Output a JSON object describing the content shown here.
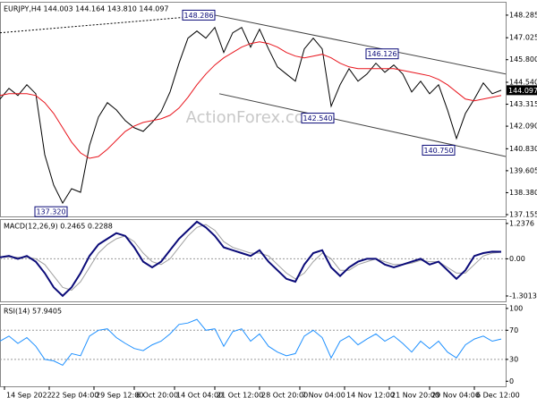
{
  "chart_data": [
    {
      "type": "line",
      "title": "EURJPY,H4 144.003 144.164 143.810 144.097",
      "watermark": "ActionForex.com",
      "last_price": 144.097,
      "xlim": [
        0,
        113
      ],
      "ylim": [
        137.055,
        149.03
      ],
      "yticks": [
        148.285,
        147.025,
        {
          "value": 145.8,
          "label": "145.800"
        },
        {
          "value": 144.54,
          "label": "144.540"
        },
        143.315,
        {
          "value": 142.09,
          "label": "142.090"
        },
        {
          "value": 140.83,
          "label": "140.830"
        },
        139.605,
        {
          "value": 138.38,
          "label": "138.380"
        },
        137.155
      ],
      "x": [
        0,
        2,
        4,
        6,
        8,
        10,
        12,
        14,
        16,
        18,
        20,
        22,
        24,
        26,
        28,
        30,
        32,
        34,
        36,
        38,
        40,
        42,
        44,
        46,
        48,
        50,
        52,
        54,
        56,
        58,
        60,
        62,
        64,
        66,
        68,
        70,
        72,
        74,
        76,
        78,
        80,
        82,
        84,
        86,
        88,
        90,
        92,
        94,
        96,
        98,
        100,
        102,
        104,
        106,
        108,
        110,
        112
      ],
      "series": [
        {
          "color": "#000000",
          "values": [
            143.6,
            144.2,
            143.8,
            144.4,
            143.9,
            140.5,
            138.8,
            137.8,
            138.6,
            138.4,
            141.0,
            142.6,
            143.4,
            143.0,
            142.4,
            142.0,
            141.8,
            142.3,
            142.9,
            144.0,
            145.6,
            147.0,
            147.4,
            147.0,
            147.6,
            146.2,
            147.3,
            147.6,
            146.5,
            147.5,
            146.4,
            145.4,
            145.0,
            144.6,
            146.4,
            147.0,
            146.4,
            143.2,
            144.4,
            145.3,
            144.6,
            145.0,
            145.6,
            145.1,
            145.5,
            145.0,
            144.0,
            144.6,
            143.9,
            144.4,
            143.0,
            141.4,
            142.8,
            143.6,
            144.5,
            143.9,
            144.097
          ]
        },
        {
          "color": "#e8141c",
          "values": [
            143.8,
            143.9,
            143.9,
            143.9,
            143.8,
            143.4,
            142.8,
            142.0,
            141.2,
            140.6,
            140.3,
            140.4,
            140.8,
            141.3,
            141.8,
            142.1,
            142.3,
            142.4,
            142.5,
            142.7,
            143.1,
            143.7,
            144.4,
            145.0,
            145.5,
            145.9,
            146.2,
            146.5,
            146.7,
            146.8,
            146.7,
            146.5,
            146.2,
            146.0,
            145.9,
            146.0,
            146.1,
            145.9,
            145.6,
            145.4,
            145.3,
            145.3,
            145.3,
            145.3,
            145.3,
            145.2,
            145.1,
            145.0,
            144.9,
            144.7,
            144.4,
            144.0,
            143.6,
            143.5,
            143.6,
            143.7,
            143.8
          ]
        }
      ],
      "trendlines": [
        {
          "x1": 0,
          "y1": 147.3,
          "x2": 47,
          "y2": 148.285,
          "dash": true,
          "color": "#000000"
        },
        {
          "x1": 48,
          "y1": 148.285,
          "x2": 113,
          "y2": 145.0,
          "dash": false,
          "color": "#444444"
        },
        {
          "x1": 49,
          "y1": 143.9,
          "x2": 113,
          "y2": 140.4,
          "dash": false,
          "color": "#444444"
        }
      ],
      "annotations": [
        {
          "value": 148.286,
          "label": "148.286",
          "x": 48
        },
        {
          "value": 146.126,
          "label": "146.126",
          "x": 89
        },
        {
          "value": 142.54,
          "label": "142.540",
          "x": 74.6
        },
        {
          "value": 140.75,
          "label": "140.750",
          "x": 101.6
        },
        {
          "value": 137.32,
          "label": "137.320",
          "x": 15
        }
      ]
    },
    {
      "type": "line",
      "title": "MACD(12,26,9) 0.2465 0.2288",
      "xlim": [
        0,
        113
      ],
      "ylim": [
        -1.49,
        1.39
      ],
      "yticks": [
        1.2376,
        {
          "value": 0,
          "label": "0.00"
        },
        -1.3013
      ],
      "levels": [
        0
      ],
      "x": [
        0,
        2,
        4,
        6,
        8,
        10,
        12,
        14,
        16,
        18,
        20,
        22,
        24,
        26,
        28,
        30,
        32,
        34,
        36,
        38,
        40,
        42,
        44,
        46,
        48,
        50,
        52,
        54,
        56,
        58,
        60,
        62,
        64,
        66,
        68,
        70,
        72,
        74,
        76,
        78,
        80,
        82,
        84,
        86,
        88,
        90,
        92,
        94,
        96,
        98,
        100,
        102,
        104,
        106,
        108,
        110,
        112
      ],
      "series": [
        {
          "color": "#a0a0a0",
          "values": [
            0.05,
            0.07,
            0.05,
            0.05,
            0.0,
            -0.2,
            -0.6,
            -1.0,
            -1.1,
            -0.8,
            -0.3,
            0.2,
            0.5,
            0.7,
            0.8,
            0.6,
            0.2,
            -0.1,
            -0.2,
            0.0,
            0.4,
            0.8,
            1.1,
            1.2,
            1.0,
            0.6,
            0.4,
            0.3,
            0.2,
            0.2,
            0.1,
            -0.2,
            -0.5,
            -0.7,
            -0.5,
            -0.1,
            0.2,
            0.0,
            -0.4,
            -0.4,
            -0.2,
            -0.1,
            0.0,
            -0.1,
            -0.2,
            -0.2,
            -0.15,
            -0.05,
            -0.1,
            -0.1,
            -0.3,
            -0.5,
            -0.5,
            -0.2,
            0.1,
            0.2,
            0.2288
          ]
        },
        {
          "color": "#0a0a78",
          "values": [
            0.05,
            0.1,
            0.0,
            0.1,
            -0.1,
            -0.5,
            -1.0,
            -1.3,
            -1.0,
            -0.5,
            0.1,
            0.5,
            0.7,
            0.9,
            0.8,
            0.4,
            -0.1,
            -0.3,
            -0.1,
            0.3,
            0.7,
            1.0,
            1.3,
            1.1,
            0.8,
            0.4,
            0.3,
            0.2,
            0.1,
            0.3,
            -0.1,
            -0.4,
            -0.7,
            -0.8,
            -0.2,
            0.2,
            0.3,
            -0.3,
            -0.6,
            -0.3,
            -0.1,
            0.0,
            0.0,
            -0.2,
            -0.3,
            -0.2,
            -0.1,
            0.0,
            -0.2,
            -0.1,
            -0.4,
            -0.7,
            -0.4,
            0.1,
            0.2,
            0.25,
            0.2465
          ]
        }
      ]
    },
    {
      "type": "line",
      "title": "RSI(14) 57.9405",
      "xlim": [
        0,
        113
      ],
      "ylim": [
        -7,
        106
      ],
      "yticks": [
        100,
        70,
        30,
        0
      ],
      "levels": [
        70,
        30
      ],
      "xticks": [
        {
          "value": 1,
          "label": "14 Sep 2022"
        },
        {
          "value": 11,
          "label": "22 Sep 04:00"
        },
        {
          "value": 21,
          "label": "29 Sep 12:00"
        },
        {
          "value": 30,
          "label": "6 Oct 20:00"
        },
        {
          "value": 39,
          "label": "14 Oct 04:00"
        },
        {
          "value": 48,
          "label": "21 Oct 12:00"
        },
        {
          "value": 58,
          "label": "28 Oct 20:00"
        },
        {
          "value": 67,
          "label": "7 Nov 04:00"
        },
        {
          "value": 77,
          "label": "14 Nov 12:00"
        },
        {
          "value": 87,
          "label": "21 Nov 20:00"
        },
        {
          "value": 96,
          "label": "29 Nov 04:00"
        },
        {
          "value": 106,
          "label": "6 Dec 12:00"
        }
      ],
      "x": [
        0,
        2,
        4,
        6,
        8,
        10,
        12,
        14,
        16,
        18,
        20,
        22,
        24,
        26,
        28,
        30,
        32,
        34,
        36,
        38,
        40,
        42,
        44,
        46,
        48,
        50,
        52,
        54,
        56,
        58,
        60,
        62,
        64,
        66,
        68,
        70,
        72,
        74,
        76,
        78,
        80,
        82,
        84,
        86,
        88,
        90,
        92,
        94,
        96,
        98,
        100,
        102,
        104,
        106,
        108,
        110,
        112
      ],
      "series": [
        {
          "color": "#1e90ff",
          "values": [
            55,
            62,
            52,
            60,
            48,
            30,
            28,
            22,
            38,
            35,
            62,
            70,
            72,
            60,
            52,
            45,
            42,
            50,
            55,
            65,
            78,
            80,
            85,
            70,
            72,
            48,
            68,
            72,
            55,
            65,
            48,
            40,
            35,
            38,
            62,
            70,
            60,
            32,
            55,
            62,
            50,
            58,
            65,
            55,
            62,
            52,
            40,
            55,
            45,
            55,
            40,
            32,
            50,
            58,
            62,
            55,
            57.9405
          ]
        }
      ]
    }
  ]
}
